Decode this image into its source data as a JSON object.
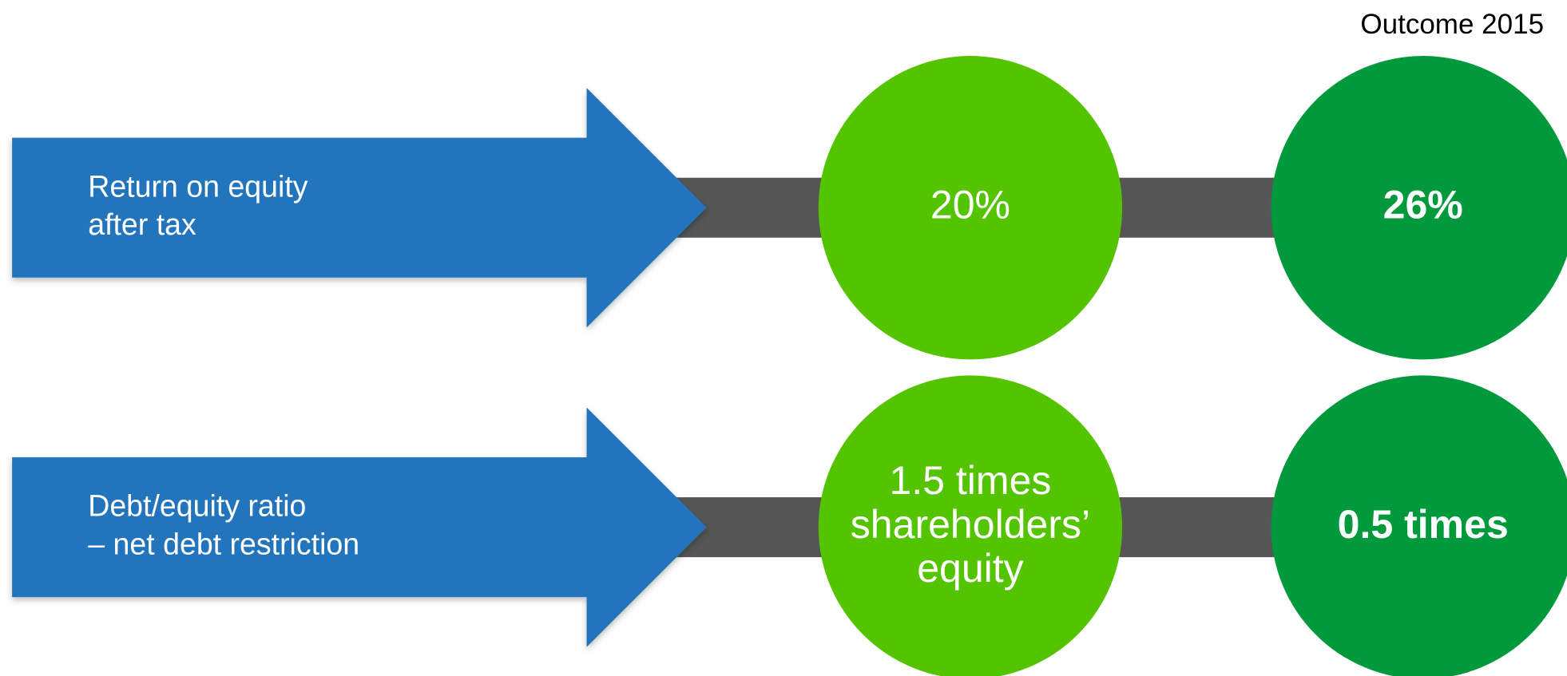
{
  "header": {
    "title": "Outcome 2015"
  },
  "rows": [
    {
      "label": [
        "Return on equity",
        "after tax"
      ],
      "target": [
        "20%"
      ],
      "outcome": "26%"
    },
    {
      "label": [
        "Debt/equity ratio",
        "– net debt restriction"
      ],
      "target": [
        "1.5 times",
        "shareholders’",
        "equity"
      ],
      "outcome": "0.5 times"
    }
  ]
}
